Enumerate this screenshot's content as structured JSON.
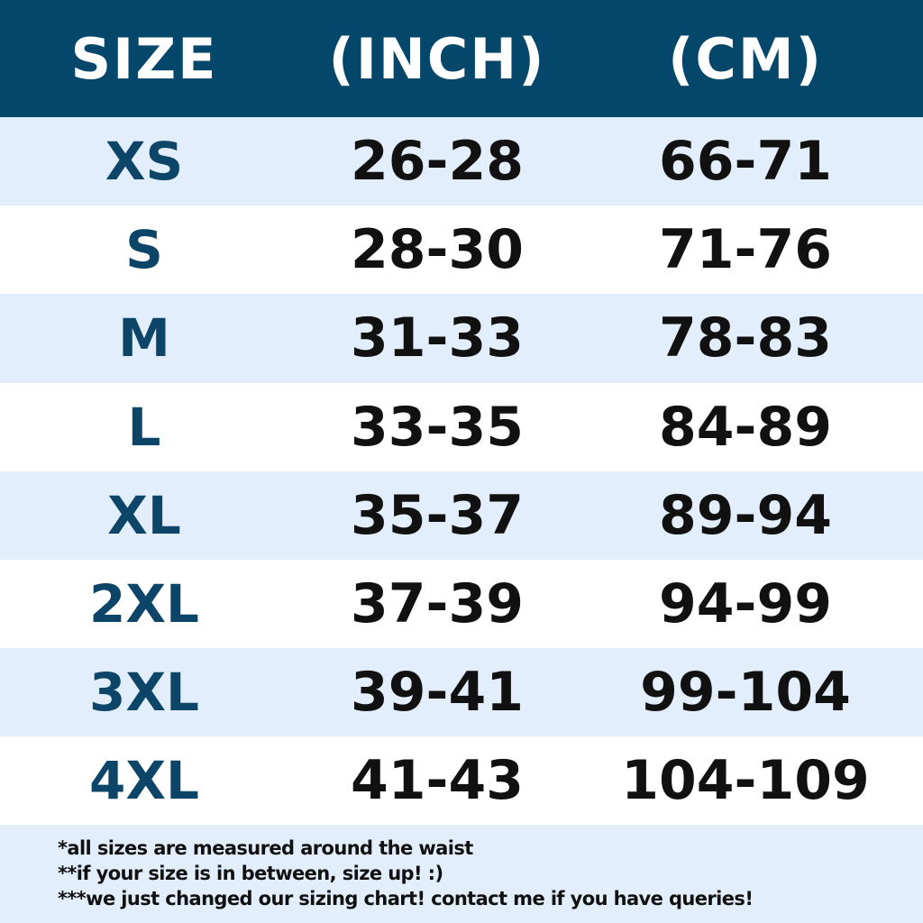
{
  "header": {
    "size": "SIZE",
    "inch": "(INCH)",
    "cm": "(CM)"
  },
  "rows": [
    {
      "size": "XS",
      "inch": "26-28",
      "cm": "66-71"
    },
    {
      "size": "S",
      "inch": "28-30",
      "cm": "71-76"
    },
    {
      "size": "M",
      "inch": "31-33",
      "cm": "78-83"
    },
    {
      "size": "L",
      "inch": "33-35",
      "cm": "84-89"
    },
    {
      "size": "XL",
      "inch": "35-37",
      "cm": "89-94"
    },
    {
      "size": "2XL",
      "inch": "37-39",
      "cm": "94-99"
    },
    {
      "size": "3XL",
      "inch": "39-41",
      "cm": "99-104"
    },
    {
      "size": "4XL",
      "inch": "41-43",
      "cm": "104-109"
    }
  ],
  "notes": [
    "*all sizes are measured around the waist",
    "**if your size is in between, size up! :)",
    "***we just changed our sizing chart! contact me if you have queries!"
  ],
  "colors": {
    "header_bg": "#05466b",
    "alt_row_bg": "#e2eefb",
    "size_text": "#0d4569"
  }
}
